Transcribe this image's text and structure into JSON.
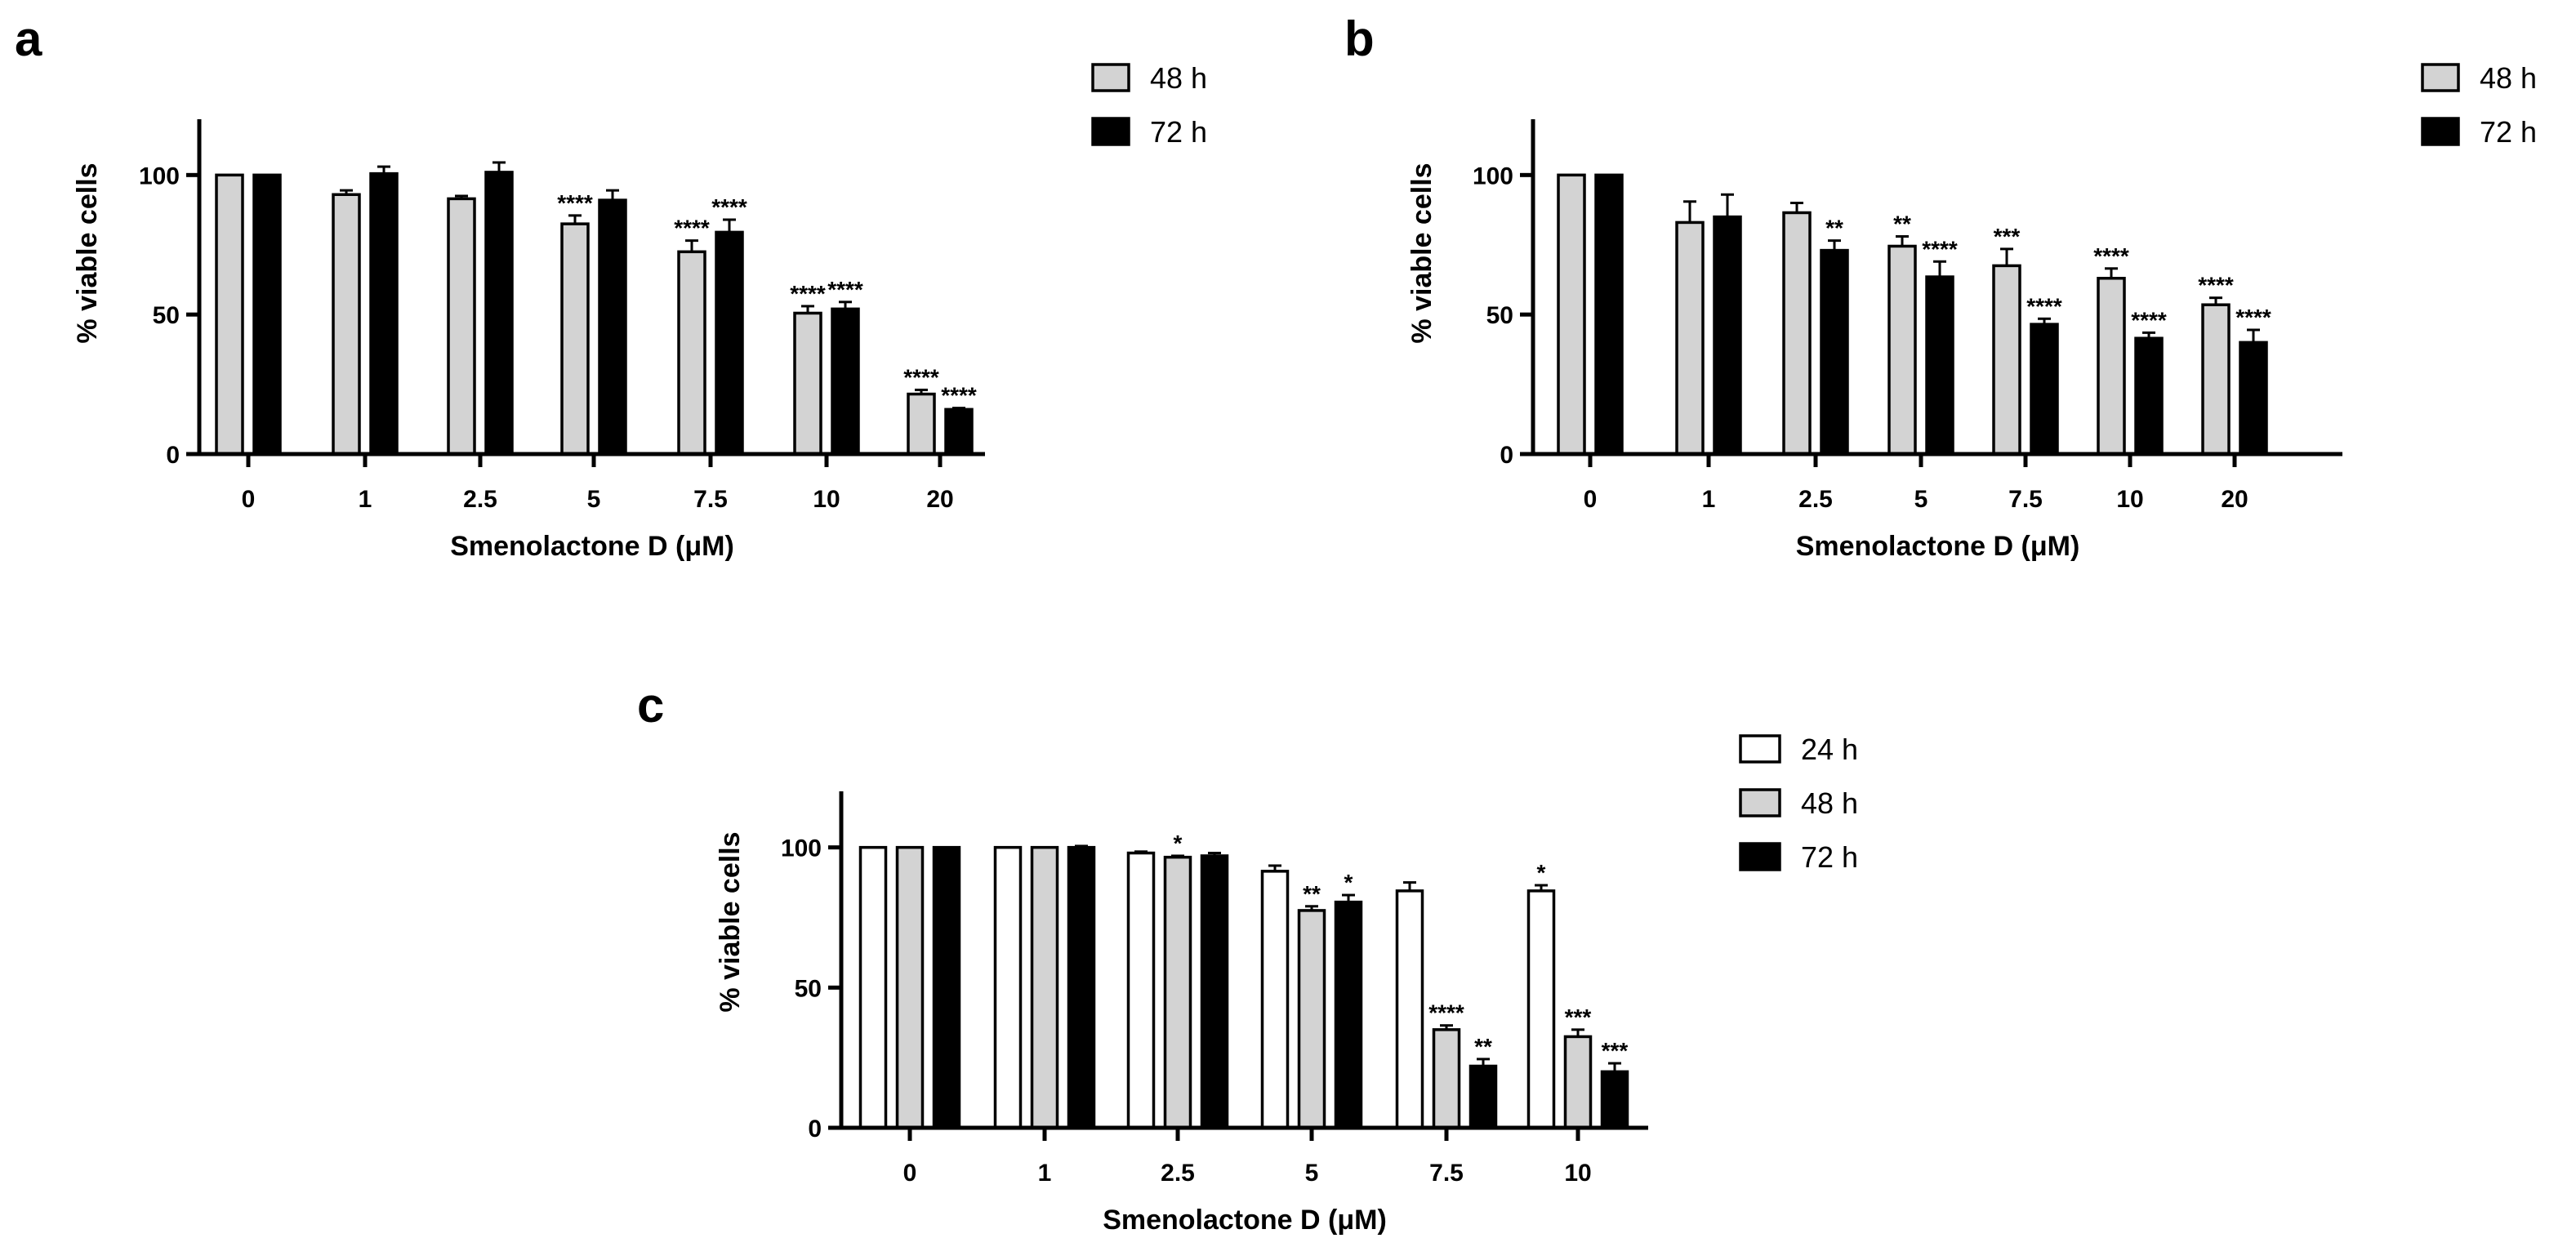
{
  "figure": {
    "title": ""
  },
  "colors": {
    "24 h": "#ffffff",
    "48 h": "#d3d3d3",
    "72 h": "#000000",
    "axis": "#000000"
  },
  "chart_data": [
    {
      "panel": "a",
      "type": "bar",
      "xlabel": "Smenolactone D (μM)",
      "ylabel": "% viable cells",
      "ylim": [
        0,
        120
      ],
      "yticks": [
        0,
        50,
        100
      ],
      "categories": [
        "0",
        "1",
        "2.5",
        "5",
        "7.5",
        "10",
        "20"
      ],
      "legend_position": "right",
      "series": [
        {
          "name": "48 h",
          "values": [
            100,
            93,
            91.5,
            82.5,
            72.5,
            50.5,
            21.5
          ],
          "errors": [
            0,
            1.5,
            1,
            3,
            4,
            2.5,
            1.5
          ],
          "significance": [
            "",
            "",
            "",
            "****",
            "****",
            "****",
            "****"
          ]
        },
        {
          "name": "72 h",
          "values": [
            100,
            100.5,
            101,
            91,
            79.5,
            52,
            16
          ],
          "errors": [
            0,
            2.5,
            3.5,
            3.5,
            4.5,
            2.5,
            0.5
          ],
          "significance": [
            "",
            "",
            "",
            "",
            "****",
            "****",
            "****"
          ]
        }
      ]
    },
    {
      "panel": "b",
      "type": "bar",
      "xlabel": "Smenolactone D (μM)",
      "ylabel": "% viable cells",
      "ylim": [
        0,
        120
      ],
      "yticks": [
        0,
        50,
        100
      ],
      "categories": [
        "0",
        "1",
        "2.5",
        "5",
        "7.5",
        "10",
        "20"
      ],
      "legend_position": "top-right",
      "series": [
        {
          "name": "48 h",
          "values": [
            100,
            83,
            86.5,
            74.5,
            67.5,
            63,
            53.5
          ],
          "errors": [
            0,
            7.5,
            3.5,
            3.5,
            6,
            3.5,
            2.5
          ],
          "significance": [
            "",
            "",
            "",
            "**",
            "***",
            "****",
            "****"
          ]
        },
        {
          "name": "72 h",
          "values": [
            100,
            85,
            73,
            63.5,
            46.5,
            41.5,
            40
          ],
          "errors": [
            0,
            8,
            3.5,
            5.5,
            2,
            2,
            4.5
          ],
          "significance": [
            "",
            "",
            "**",
            "****",
            "****",
            "****",
            "****"
          ]
        }
      ]
    },
    {
      "panel": "c",
      "type": "bar",
      "xlabel": "Smenolactone D (μM)",
      "ylabel": "% viable cells",
      "ylim": [
        0,
        120
      ],
      "yticks": [
        0,
        50,
        100
      ],
      "categories": [
        "0",
        "1",
        "2.5",
        "5",
        "7.5",
        "10"
      ],
      "legend_position": "right",
      "series": [
        {
          "name": "24 h",
          "values": [
            100,
            100,
            98,
            91.5,
            84.5,
            84.5
          ],
          "errors": [
            0,
            0,
            0.5,
            2,
            3,
            2
          ],
          "significance": [
            "",
            "",
            "",
            "",
            "",
            "*"
          ]
        },
        {
          "name": "48 h",
          "values": [
            100,
            100,
            96.5,
            77.5,
            35,
            32.5
          ],
          "errors": [
            0,
            0,
            0.5,
            1.5,
            1.5,
            2.5
          ],
          "significance": [
            "",
            "",
            "*",
            "**",
            "****",
            "***"
          ]
        },
        {
          "name": "72 h",
          "values": [
            100,
            100,
            97,
            80.5,
            22,
            20
          ],
          "errors": [
            0,
            0.5,
            1,
            2.5,
            2.5,
            3
          ],
          "significance": [
            "",
            "",
            "",
            "*",
            "**",
            "***"
          ]
        }
      ]
    }
  ]
}
